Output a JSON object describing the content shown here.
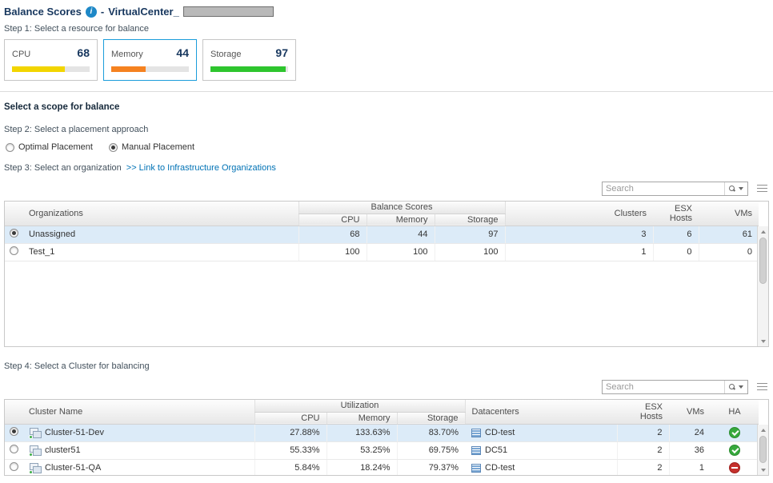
{
  "header": {
    "title": "Balance Scores",
    "separator": "-",
    "subtitle": "VirtualCenter_"
  },
  "steps": {
    "step1": "Step 1: Select a resource for balance",
    "scope_heading": "Select a scope for balance",
    "step2": "Step 2: Select a placement approach",
    "step3": "Step 3: Select an organization",
    "step3_link": ">> Link to Infrastructure Organizations",
    "step4": "Step 4: Select a Cluster for balancing"
  },
  "resources": [
    {
      "label": "CPU",
      "value": 68,
      "color": "#f2d500",
      "selected": false
    },
    {
      "label": "Memory",
      "value": 44,
      "color": "#f58220",
      "selected": true
    },
    {
      "label": "Storage",
      "value": 97,
      "color": "#2ec52e",
      "selected": false
    }
  ],
  "placement": [
    {
      "label": "Optimal Placement",
      "selected": false
    },
    {
      "label": "Manual Placement",
      "selected": true
    }
  ],
  "search": {
    "placeholder": "Search"
  },
  "org_table": {
    "group_header": "Balance Scores",
    "headers": {
      "name": "Organizations",
      "cpu": "CPU",
      "memory": "Memory",
      "storage": "Storage",
      "clusters": "Clusters",
      "esx_hosts": "ESX Hosts",
      "vms": "VMs"
    },
    "rows": [
      {
        "selected": true,
        "name": "Unassigned",
        "cpu": "68",
        "memory": "44",
        "storage": "97",
        "clusters": "3",
        "esx_hosts": "6",
        "vms": "61"
      },
      {
        "selected": false,
        "name": "Test_1",
        "cpu": "100",
        "memory": "100",
        "storage": "100",
        "clusters": "1",
        "esx_hosts": "0",
        "vms": "0"
      }
    ]
  },
  "cluster_table": {
    "group_header": "Utilization",
    "headers": {
      "name": "Cluster Name",
      "cpu": "CPU",
      "memory": "Memory",
      "storage": "Storage",
      "datacenters": "Datacenters",
      "esx_hosts": "ESX Hosts",
      "vms": "VMs",
      "ha": "HA"
    },
    "rows": [
      {
        "selected": true,
        "name": "Cluster-51-Dev",
        "cpu": "27.88%",
        "memory": "133.63%",
        "storage": "83.70%",
        "datacenter": "CD-test",
        "esx_hosts": "2",
        "vms": "24",
        "ha": "ok"
      },
      {
        "selected": false,
        "name": "cluster51",
        "cpu": "55.33%",
        "memory": "53.25%",
        "storage": "69.75%",
        "datacenter": "DC51",
        "esx_hosts": "2",
        "vms": "36",
        "ha": "ok"
      },
      {
        "selected": false,
        "name": "Cluster-51-QA",
        "cpu": "5.84%",
        "memory": "18.24%",
        "storage": "79.37%",
        "datacenter": "CD-test",
        "esx_hosts": "2",
        "vms": "1",
        "ha": "blocked"
      }
    ]
  },
  "icons": {
    "info": "info-icon",
    "search": "search-icon",
    "dropdown": "chevron-down-icon",
    "options": "table-options-icon",
    "cluster": "cluster-icon",
    "datacenter": "datacenter-icon",
    "ha_ok": "check-circle-icon",
    "ha_blocked": "no-entry-icon"
  },
  "colors": {
    "title": "#17375e",
    "accent": "#1b9ddb",
    "link": "#0072b5",
    "selected_row": "#dcebf8",
    "ha_ok": "#36a93c",
    "ha_blocked": "#c5302c"
  }
}
